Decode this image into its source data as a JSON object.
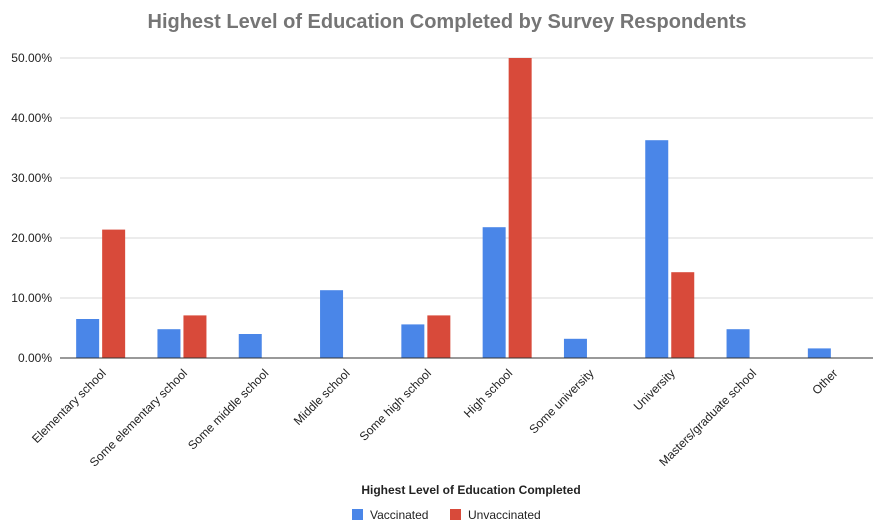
{
  "chart_data": {
    "type": "bar",
    "title": "Highest Level of Education Completed by Survey Respondents",
    "xlabel": "Highest Level of Education Completed",
    "ylabel": "",
    "ylim": [
      0,
      50
    ],
    "yticks": [
      "0.00%",
      "10.00%",
      "20.00%",
      "30.00%",
      "40.00%",
      "50.00%"
    ],
    "categories": [
      "Elementary school",
      "Some elementary school",
      "Some middle school",
      "Middle school",
      "Some high school",
      "High school",
      "Some university",
      "University",
      "Masters/graduate school",
      "Other"
    ],
    "series": [
      {
        "name": "Vaccinated",
        "color": "#4a86e8",
        "values": [
          6.5,
          4.8,
          4.0,
          11.3,
          5.6,
          21.8,
          3.2,
          36.3,
          4.8,
          1.6
        ]
      },
      {
        "name": "Unvaccinated",
        "color": "#d84a3a",
        "values": [
          21.4,
          7.1,
          0,
          0,
          7.1,
          50.0,
          0,
          14.3,
          0,
          0
        ]
      }
    ],
    "grid": true,
    "legend_position": "bottom"
  }
}
